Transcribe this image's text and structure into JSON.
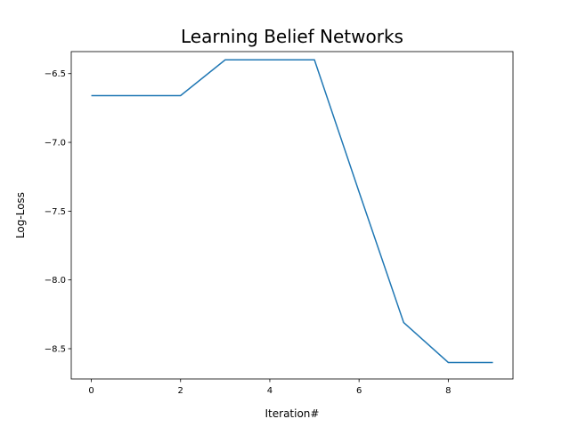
{
  "chart_data": {
    "type": "line",
    "title": "Learning Belief Networks",
    "xlabel": "Iteration#",
    "ylabel": "Log-Loss",
    "xlim": [
      -0.45,
      9.45
    ],
    "ylim": [
      -8.72,
      -6.34
    ],
    "xticks": [
      0,
      2,
      4,
      6,
      8
    ],
    "xtick_labels": [
      "0",
      "2",
      "4",
      "6",
      "8"
    ],
    "yticks": [
      -6.5,
      -7.0,
      -7.5,
      -8.0,
      -8.5
    ],
    "ytick_labels": [
      "−6.5",
      "−7.0",
      "−7.5",
      "−8.0",
      "−8.5"
    ],
    "grid": false,
    "series": [
      {
        "color": "#1f77b4",
        "x": [
          0,
          1,
          2,
          3,
          4,
          5,
          6,
          7,
          8,
          9
        ],
        "y": [
          -6.66,
          -6.66,
          -6.66,
          -6.4,
          -6.4,
          -6.4,
          -7.36,
          -8.31,
          -8.6,
          -8.6
        ]
      }
    ]
  }
}
